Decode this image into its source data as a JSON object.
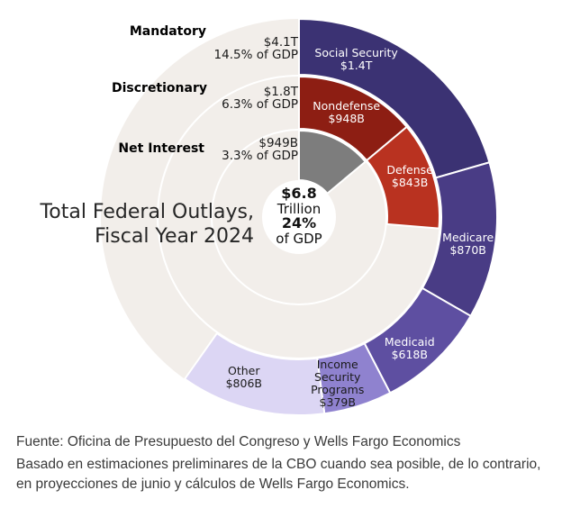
{
  "title": {
    "line1": "Total Federal Outlays,",
    "line2": "Fiscal Year 2024"
  },
  "center_label": {
    "value": "$6.8",
    "unit": "Trillion",
    "percent": "24%",
    "percent_suffix": "of GDP"
  },
  "footer": {
    "source_line": "Fuente: Oficina de Presupuesto del Congreso y Wells Fargo Economics",
    "note_line1": "Basado en estimaciones preliminares de la CBO cuando sea posible, de lo contrario,",
    "note_line2": "en proyecciones de junio y cálculos de Wells Fargo Economics."
  },
  "chart_data": {
    "type": "pie",
    "subtype": "multi-ring donut (sunburst), segments start at 12 o'clock and run clockwise",
    "title": "Total Federal Outlays, Fiscal Year 2024",
    "center_total": {
      "label": "$6.8 Trillion",
      "percent_of_gdp": "24% of GDP",
      "value_billions": 6813
    },
    "unfilled_color": "#f2eeea",
    "separator_color": "#ffffff",
    "background_color": "#ffffff",
    "start_angle_deg": 0,
    "clockwise": true,
    "rings": [
      {
        "name": "Mandatory",
        "value_label": "$4.1T",
        "gdp_label": "14.5% of GDP",
        "total_billions": 4073,
        "segments": [
          {
            "label": "Social Security",
            "value_label": "$1.4T",
            "value_billions": 1400,
            "color": "#3b3273",
            "text_color": "#ffffff",
            "label_lines": [
              "Social Security",
              "$1.4T"
            ],
            "label_angle_deg": 20,
            "label_radius": 186
          },
          {
            "label": "Medicare",
            "value_label": "$870B",
            "value_billions": 870,
            "color": "#493c85",
            "text_color": "#ffffff",
            "label_lines": [
              "Medicare",
              "$870B"
            ],
            "label_angle_deg": 99,
            "label_radius": 190
          },
          {
            "label": "Medicaid",
            "value_label": "$618B",
            "value_billions": 618,
            "color": "#5e4fa1",
            "text_color": "#ffffff",
            "label_lines": [
              "Medicaid",
              "$618B"
            ],
            "label_angle_deg": 140,
            "label_radius": 191
          },
          {
            "label": "Income Security Programs",
            "value_label": "$379B",
            "value_billions": 379,
            "color": "#8f82cf",
            "text_color": "#1a1a1a",
            "label_lines": [
              "Income",
              "Security",
              "Programs",
              "$379B"
            ],
            "label_angle_deg": 167,
            "label_radius": 190
          },
          {
            "label": "Other",
            "value_label": "$806B",
            "value_billions": 806,
            "color": "#dcd6f4",
            "text_color": "#1a1a1a",
            "label_lines": [
              "Other",
              "$806B"
            ],
            "label_angle_deg": 199,
            "label_radius": 188
          }
        ]
      },
      {
        "name": "Discretionary",
        "value_label": "$1.8T",
        "gdp_label": "6.3% of GDP",
        "total_billions": 1791,
        "segments": [
          {
            "label": "Nondefense",
            "value_label": "$948B",
            "value_billions": 948,
            "color": "#8d1e13",
            "text_color": "#ffffff",
            "label_lines": [
              "Nondefense",
              "$948B"
            ],
            "label_angle_deg": 24.5,
            "label_radius": 127
          },
          {
            "label": "Defense",
            "value_label": "$843B",
            "value_billions": 843,
            "color": "#b93220",
            "text_color": "#ffffff",
            "label_lines": [
              "Defense",
              "$843B"
            ],
            "label_angle_deg": 70,
            "label_radius": 131
          }
        ]
      },
      {
        "name": "Net Interest",
        "value_label": "$949B",
        "gdp_label": "3.3% of GDP",
        "total_billions": 949,
        "segments": [
          {
            "label": "Net Interest",
            "value_label": "$949B",
            "value_billions": 949,
            "color": "#7d7d7d",
            "text_color": "#ffffff",
            "label_lines": [],
            "label_angle_deg": 25,
            "label_radius": 68
          }
        ]
      }
    ]
  }
}
